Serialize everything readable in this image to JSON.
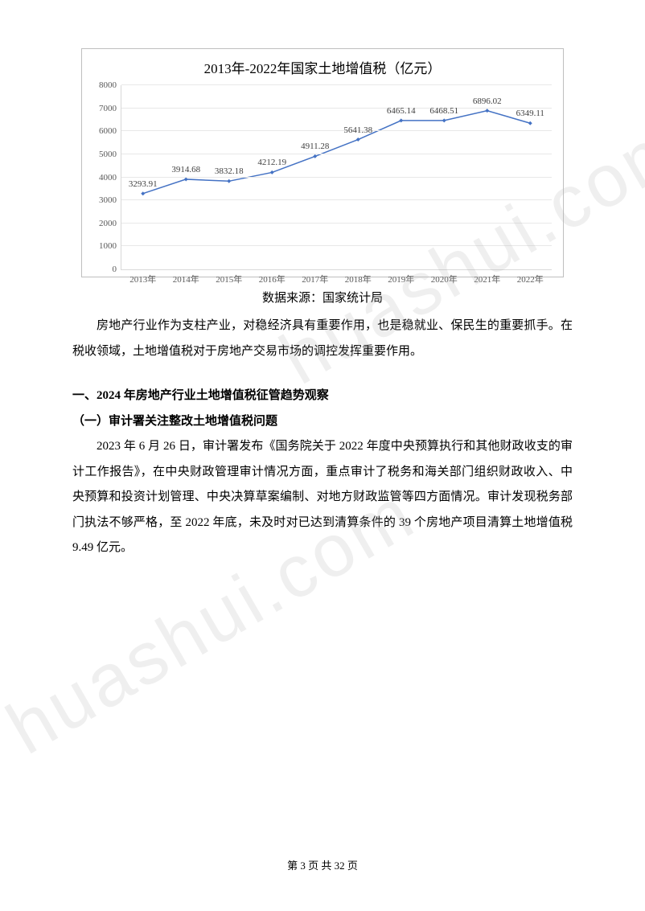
{
  "chart": {
    "type": "line",
    "title": "2013年-2022年国家土地增值税（亿元）",
    "title_fontsize": 17,
    "categories": [
      "2013年",
      "2014年",
      "2015年",
      "2016年",
      "2017年",
      "2018年",
      "2019年",
      "2020年",
      "2021年",
      "2022年"
    ],
    "values": [
      3293.91,
      3914.68,
      3832.18,
      4212.19,
      4911.28,
      5641.38,
      6465.14,
      6468.51,
      6896.02,
      6349.11
    ],
    "ylim": [
      0,
      8000
    ],
    "ytick_step": 1000,
    "yticks": [
      0,
      1000,
      2000,
      3000,
      4000,
      5000,
      6000,
      7000,
      8000
    ],
    "line_color": "#4472c4",
    "line_width": 1.5,
    "marker": "diamond",
    "marker_color": "#4472c4",
    "marker_size": 5,
    "grid_color": "#e8e8e8",
    "axis_color": "#d9d9d9",
    "background_color": "#ffffff",
    "label_fontsize": 11,
    "label_color": "#595959",
    "data_label_color": "#404040"
  },
  "source": "数据来源：国家统计局",
  "intro_para": "房地产行业作为支柱产业，对稳经济具有重要作用，也是稳就业、保民生的重要抓手。在税收领域，土地增值税对于房地产交易市场的调控发挥重要作用。",
  "section_heading": "一、2024 年房地产行业土地增值税征管趋势观察",
  "sub_heading": "（一）审计署关注整改土地增值税问题",
  "body_para": "2023 年 6 月 26 日，审计署发布《国务院关于 2022 年度中央预算执行和其他财政收支的审计工作报告》，在中央财政管理审计情况方面，重点审计了税务和海关部门组织财政收入、中央预算和投资计划管理、中央决算草案编制、对地方财政监管等四方面情况。审计发现税务部门执法不够严格，至 2022 年底，未及时对已达到清算条件的 39 个房地产项目清算土地增值税 9.49 亿元。",
  "footer": {
    "prefix": "第 ",
    "current": "3",
    "mid": " 页 共 ",
    "total": "32",
    "suffix": " 页"
  },
  "watermark_text": "huashui.com"
}
